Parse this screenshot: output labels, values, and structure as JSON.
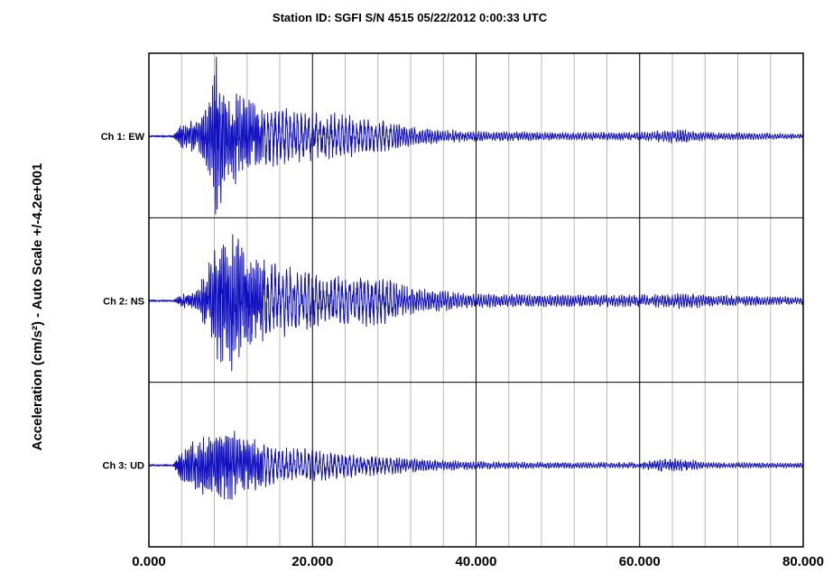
{
  "chart_data": {
    "type": "line",
    "title": "Station ID: SGFI S/N 4515   05/22/2012 0:00:33 UTC",
    "ylabel": "Acceleration (cm/s²) - Auto Scale +/-4.2e+001",
    "xlim": [
      0,
      80
    ],
    "ylim": [
      -42,
      42
    ],
    "grid": true,
    "x_ticks": [
      0,
      20,
      40,
      60,
      80
    ],
    "x_tick_labels": [
      "0.000",
      "20.000",
      "40.000",
      "60.000",
      "80.000"
    ],
    "minor_grid_step": 4,
    "major_grid_step": 20,
    "line_color": "#1010c0",
    "series": [
      {
        "name": "Ch 1: EW",
        "peak_abs_envelope": [
          [
            0,
            0.5
          ],
          [
            3,
            0.5
          ],
          [
            4,
            6
          ],
          [
            6,
            9
          ],
          [
            7.6,
            22
          ],
          [
            8.2,
            42
          ],
          [
            9,
            30
          ],
          [
            12,
            18
          ],
          [
            16,
            14
          ],
          [
            20,
            12
          ],
          [
            24,
            11
          ],
          [
            28,
            8
          ],
          [
            32,
            5
          ],
          [
            36,
            3.5
          ],
          [
            40,
            2.5
          ],
          [
            50,
            2
          ],
          [
            60,
            2
          ],
          [
            64,
            3.5
          ],
          [
            66,
            3.5
          ],
          [
            68,
            2
          ],
          [
            80,
            1.5
          ]
        ]
      },
      {
        "name": "Ch 2: NS",
        "peak_abs_envelope": [
          [
            0,
            0.5
          ],
          [
            3,
            0.5
          ],
          [
            4,
            3
          ],
          [
            6,
            6
          ],
          [
            8,
            26
          ],
          [
            9,
            34
          ],
          [
            10,
            38
          ],
          [
            12,
            24
          ],
          [
            16,
            18
          ],
          [
            20,
            14
          ],
          [
            24,
            12
          ],
          [
            28,
            13
          ],
          [
            32,
            7
          ],
          [
            36,
            5
          ],
          [
            40,
            3.5
          ],
          [
            50,
            3
          ],
          [
            60,
            3
          ],
          [
            64,
            4
          ],
          [
            66,
            4
          ],
          [
            68,
            3
          ],
          [
            80,
            2
          ]
        ]
      },
      {
        "name": "Ch 3: UD",
        "peak_abs_envelope": [
          [
            0,
            0.5
          ],
          [
            3,
            0.5
          ],
          [
            4,
            8
          ],
          [
            6,
            13
          ],
          [
            8,
            17
          ],
          [
            10,
            19
          ],
          [
            12,
            14
          ],
          [
            16,
            9
          ],
          [
            20,
            8
          ],
          [
            24,
            6
          ],
          [
            28,
            5
          ],
          [
            32,
            3.5
          ],
          [
            36,
            2.5
          ],
          [
            40,
            2
          ],
          [
            50,
            1.5
          ],
          [
            60,
            1.5
          ],
          [
            62,
            3
          ],
          [
            64,
            3.5
          ],
          [
            66,
            3
          ],
          [
            68,
            1.5
          ],
          [
            80,
            1.2
          ]
        ]
      }
    ]
  }
}
